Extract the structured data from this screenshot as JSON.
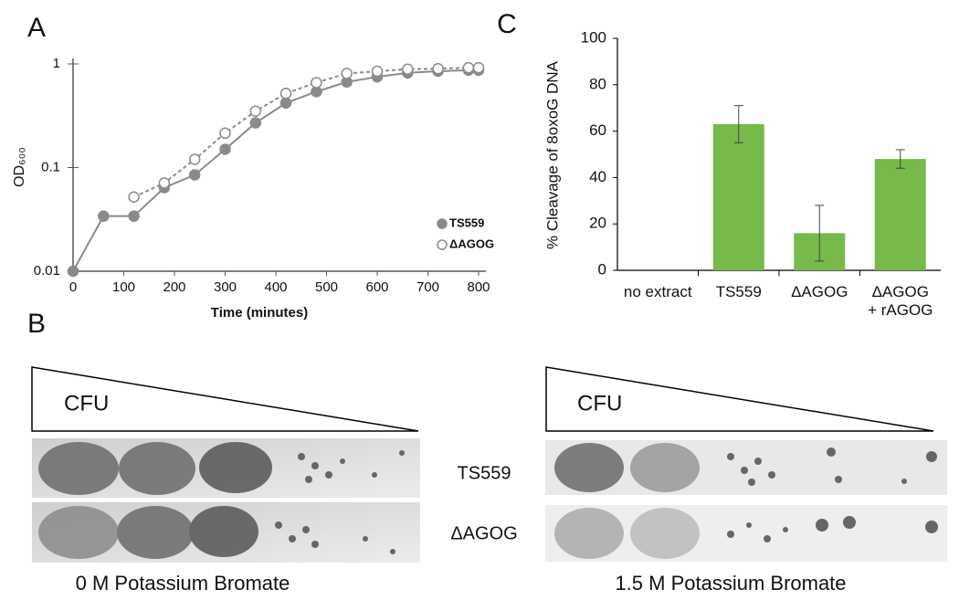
{
  "chart_data": [
    {
      "type": "line",
      "panel_label": "A",
      "x_label": "Time (minutes)",
      "y_label": "OD₆₀₀",
      "log_y": true,
      "xlim": [
        0,
        800
      ],
      "xticks": [
        0,
        100,
        200,
        300,
        400,
        500,
        600,
        700,
        800
      ],
      "ylim": [
        0.01,
        1
      ],
      "yticks": [
        0.01,
        0.1,
        1
      ],
      "legend": "lower right",
      "series": [
        {
          "name": "TS559",
          "color": "#8a8a8a",
          "marker": "filled",
          "line_style": "solid",
          "x": [
            0,
            60,
            120,
            180,
            240,
            300,
            360,
            420,
            480,
            540,
            600,
            660,
            720,
            780,
            800
          ],
          "values": [
            0.01,
            0.034,
            0.034,
            0.064,
            0.085,
            0.15,
            0.27,
            0.42,
            0.54,
            0.67,
            0.75,
            0.82,
            0.85,
            0.87,
            0.87
          ]
        },
        {
          "name": "ΔAGOG",
          "color": "#8a8a8a",
          "marker": "open",
          "line_style": "dashed",
          "x": [
            120,
            180,
            240,
            300,
            360,
            420,
            480,
            540,
            600,
            660,
            720,
            780,
            800
          ],
          "values": [
            0.052,
            0.071,
            0.12,
            0.215,
            0.35,
            0.52,
            0.66,
            0.81,
            0.85,
            0.89,
            0.9,
            0.92,
            0.92
          ]
        }
      ]
    },
    {
      "type": "bar",
      "panel_label": "C",
      "y_label": "% Cleavage of 8oxoG DNA",
      "categories": [
        "no extract",
        "TS559",
        "ΔAGOG",
        "ΔAGOG\n+ rAGOG"
      ],
      "values": [
        0,
        63,
        16,
        48
      ],
      "errors": [
        null,
        8,
        12,
        4
      ],
      "color": "#77b94a",
      "ylim": [
        0,
        100
      ],
      "yticks": [
        0,
        20,
        40,
        60,
        80,
        100
      ]
    }
  ],
  "panel_b": {
    "label": "B",
    "strains": [
      "TS559",
      "ΔAGOG"
    ],
    "plates": [
      {
        "cfu_label": "CFU",
        "condition": "0 M Potassium Bromate"
      },
      {
        "cfu_label": "CFU",
        "condition": "1.5 M Potassium Bromate"
      }
    ]
  }
}
